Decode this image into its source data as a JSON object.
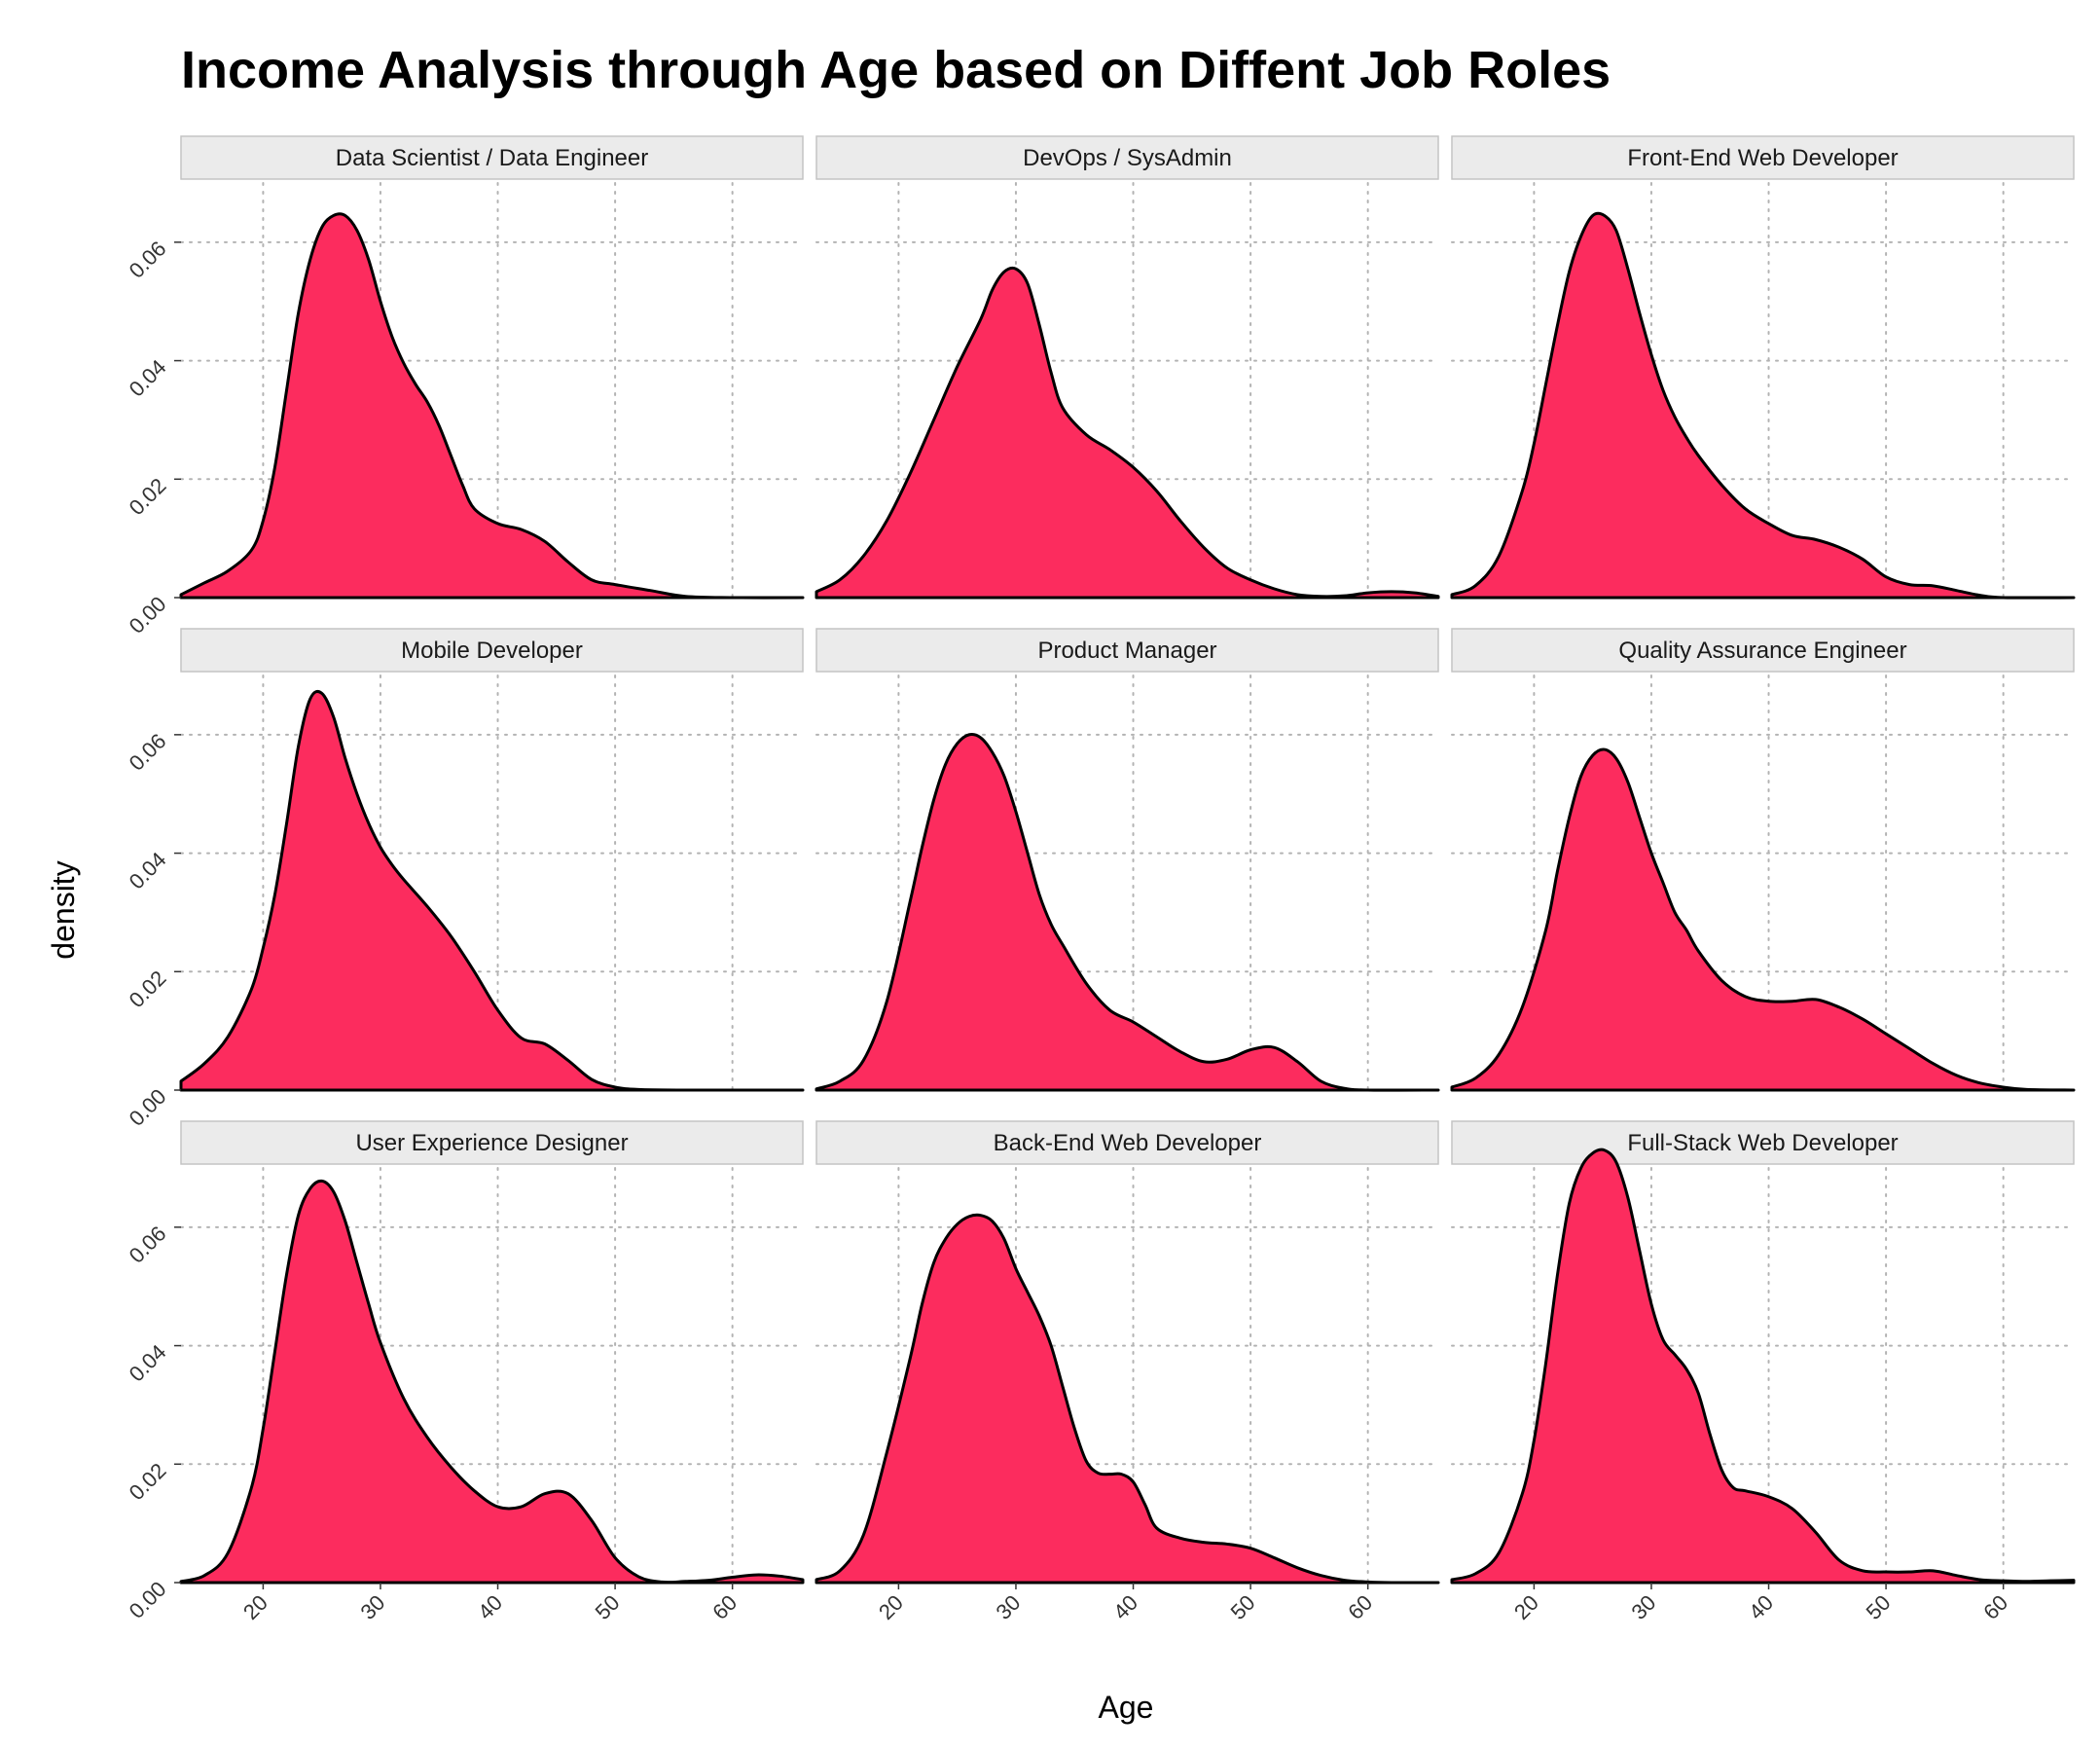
{
  "chart_data": {
    "type": "area",
    "title": "Income Analysis through Age based on Diffent Job Roles",
    "xlabel": "Age",
    "ylabel": "density",
    "xlim": [
      13,
      66
    ],
    "ylim": [
      0,
      0.07
    ],
    "x_ticks": [
      20,
      30,
      40,
      50,
      60
    ],
    "x_tick_labels": [
      "20",
      "30",
      "40",
      "50",
      "60"
    ],
    "y_ticks": [
      0,
      0.02,
      0.04,
      0.06
    ],
    "y_tick_labels": [
      "0.00",
      "0.02",
      "0.04",
      "0.06"
    ],
    "fill_color": "#fc2c5e",
    "line_color": "#000000",
    "grid": true,
    "layout": "facets-3x3",
    "panels": [
      {
        "name": "Data Scientist / Data Engineer",
        "x": [
          13,
          15,
          17,
          19,
          20,
          21,
          22,
          23,
          24,
          25,
          26,
          27,
          28,
          29,
          30,
          31,
          32,
          33,
          34,
          35,
          36,
          37,
          38,
          40,
          42,
          44,
          46,
          48,
          50,
          53,
          56,
          60,
          66
        ],
        "y": [
          0.0005,
          0.0025,
          0.0045,
          0.008,
          0.013,
          0.022,
          0.035,
          0.048,
          0.057,
          0.0625,
          0.0645,
          0.0645,
          0.062,
          0.057,
          0.05,
          0.044,
          0.0395,
          0.036,
          0.033,
          0.029,
          0.024,
          0.019,
          0.015,
          0.0125,
          0.0115,
          0.0095,
          0.006,
          0.003,
          0.0022,
          0.0012,
          0.0002,
          0.0,
          0.0
        ]
      },
      {
        "name": "DevOps / SysAdmin",
        "x": [
          13,
          15,
          17,
          19,
          21,
          23,
          25,
          27,
          28,
          29,
          30,
          31,
          32,
          33,
          34,
          36,
          38,
          40,
          42,
          44,
          46,
          48,
          50,
          52,
          54,
          56,
          58,
          60,
          62,
          64,
          66
        ],
        "y": [
          0.001,
          0.003,
          0.007,
          0.013,
          0.021,
          0.03,
          0.039,
          0.047,
          0.052,
          0.055,
          0.0555,
          0.053,
          0.046,
          0.038,
          0.032,
          0.0275,
          0.025,
          0.022,
          0.018,
          0.013,
          0.0085,
          0.005,
          0.003,
          0.0015,
          0.0005,
          0.0002,
          0.0003,
          0.0008,
          0.001,
          0.0008,
          0.0002
        ]
      },
      {
        "name": "Front-End Web Developer",
        "x": [
          13,
          15,
          17,
          19,
          20,
          21,
          22,
          23,
          24,
          25,
          26,
          27,
          28,
          29,
          30,
          31,
          32,
          33,
          34,
          36,
          38,
          40,
          42,
          44,
          46,
          48,
          50,
          52,
          54,
          56,
          58,
          60,
          66
        ],
        "y": [
          0.0005,
          0.002,
          0.007,
          0.018,
          0.026,
          0.036,
          0.046,
          0.055,
          0.061,
          0.0645,
          0.0645,
          0.062,
          0.0555,
          0.048,
          0.041,
          0.035,
          0.0305,
          0.027,
          0.024,
          0.019,
          0.015,
          0.0125,
          0.0105,
          0.0098,
          0.0085,
          0.0065,
          0.0035,
          0.0022,
          0.002,
          0.0012,
          0.0004,
          0.0,
          0.0
        ]
      },
      {
        "name": "Mobile Developer",
        "x": [
          13,
          15,
          17,
          19,
          20,
          21,
          22,
          23,
          24,
          25,
          26,
          27,
          28,
          29,
          30,
          31,
          32,
          34,
          36,
          38,
          40,
          42,
          44,
          46,
          48,
          50,
          52,
          56,
          60,
          66
        ],
        "y": [
          0.0015,
          0.0045,
          0.009,
          0.017,
          0.024,
          0.033,
          0.045,
          0.058,
          0.066,
          0.067,
          0.063,
          0.056,
          0.05,
          0.045,
          0.041,
          0.038,
          0.0355,
          0.031,
          0.026,
          0.02,
          0.0135,
          0.0088,
          0.0078,
          0.005,
          0.0018,
          0.0005,
          0.0001,
          0.0,
          0.0,
          0.0
        ]
      },
      {
        "name": "Product Manager",
        "x": [
          13,
          15,
          17,
          19,
          21,
          22,
          23,
          24,
          25,
          26,
          27,
          28,
          29,
          30,
          31,
          32,
          33,
          34,
          36,
          38,
          40,
          42,
          44,
          46,
          48,
          50,
          52,
          54,
          56,
          58,
          60,
          66
        ],
        "y": [
          0.0002,
          0.0015,
          0.005,
          0.015,
          0.032,
          0.041,
          0.049,
          0.055,
          0.0585,
          0.06,
          0.0595,
          0.057,
          0.053,
          0.047,
          0.04,
          0.033,
          0.028,
          0.0245,
          0.018,
          0.0135,
          0.0115,
          0.009,
          0.0065,
          0.0048,
          0.0052,
          0.0068,
          0.0072,
          0.0048,
          0.0015,
          0.0003,
          0.0,
          0.0
        ]
      },
      {
        "name": "Quality Assurance Engineer",
        "x": [
          13,
          15,
          17,
          19,
          21,
          22,
          23,
          24,
          25,
          26,
          27,
          28,
          29,
          30,
          31,
          32,
          33,
          34,
          36,
          38,
          40,
          42,
          44,
          46,
          48,
          50,
          52,
          54,
          56,
          58,
          60,
          62,
          66
        ],
        "y": [
          0.0005,
          0.002,
          0.006,
          0.014,
          0.027,
          0.037,
          0.046,
          0.053,
          0.0565,
          0.0575,
          0.056,
          0.052,
          0.046,
          0.04,
          0.035,
          0.03,
          0.027,
          0.0235,
          0.0185,
          0.0158,
          0.015,
          0.015,
          0.0153,
          0.014,
          0.012,
          0.0095,
          0.007,
          0.0045,
          0.0025,
          0.0012,
          0.0005,
          0.0001,
          0.0
        ]
      },
      {
        "name": "User Experience Designer",
        "x": [
          13,
          15,
          17,
          19,
          20,
          21,
          22,
          23,
          24,
          25,
          26,
          27,
          28,
          29,
          30,
          32,
          34,
          36,
          38,
          40,
          42,
          44,
          46,
          48,
          50,
          52,
          54,
          56,
          58,
          60,
          62,
          64,
          66
        ],
        "y": [
          0.0002,
          0.0012,
          0.005,
          0.016,
          0.026,
          0.039,
          0.052,
          0.062,
          0.0665,
          0.0678,
          0.066,
          0.061,
          0.054,
          0.047,
          0.0405,
          0.031,
          0.0245,
          0.0195,
          0.0155,
          0.0128,
          0.0128,
          0.015,
          0.015,
          0.0105,
          0.0042,
          0.001,
          0.0001,
          0.0002,
          0.0004,
          0.0009,
          0.0013,
          0.0011,
          0.0005
        ]
      },
      {
        "name": "Back-End Web Developer",
        "x": [
          13,
          15,
          17,
          19,
          21,
          22,
          23,
          24,
          25,
          26,
          27,
          28,
          29,
          30,
          31,
          32,
          33,
          34,
          35,
          36,
          37,
          38,
          39,
          40,
          41,
          42,
          44,
          46,
          48,
          50,
          52,
          54,
          56,
          58,
          60,
          62,
          66
        ],
        "y": [
          0.0005,
          0.002,
          0.008,
          0.022,
          0.038,
          0.047,
          0.054,
          0.058,
          0.0605,
          0.0618,
          0.062,
          0.061,
          0.058,
          0.053,
          0.049,
          0.045,
          0.04,
          0.033,
          0.026,
          0.0205,
          0.0185,
          0.0183,
          0.0183,
          0.017,
          0.0132,
          0.0092,
          0.0075,
          0.0068,
          0.0065,
          0.0058,
          0.0042,
          0.0025,
          0.0012,
          0.0004,
          0.0001,
          0.0,
          0.0
        ]
      },
      {
        "name": "Full-Stack Web Developer",
        "x": [
          13,
          15,
          17,
          19,
          20,
          21,
          22,
          23,
          24,
          25,
          26,
          27,
          28,
          29,
          30,
          31,
          32,
          33,
          34,
          35,
          36,
          37,
          38,
          40,
          42,
          44,
          46,
          48,
          50,
          52,
          54,
          56,
          58,
          60,
          62,
          64,
          66
        ],
        "y": [
          0.0005,
          0.0015,
          0.005,
          0.015,
          0.024,
          0.037,
          0.052,
          0.064,
          0.07,
          0.0725,
          0.073,
          0.071,
          0.065,
          0.056,
          0.047,
          0.041,
          0.0385,
          0.036,
          0.032,
          0.025,
          0.019,
          0.016,
          0.0155,
          0.0145,
          0.0125,
          0.0085,
          0.0038,
          0.002,
          0.0018,
          0.0018,
          0.002,
          0.0012,
          0.0005,
          0.0003,
          0.0002,
          0.0003,
          0.0004
        ]
      }
    ]
  }
}
